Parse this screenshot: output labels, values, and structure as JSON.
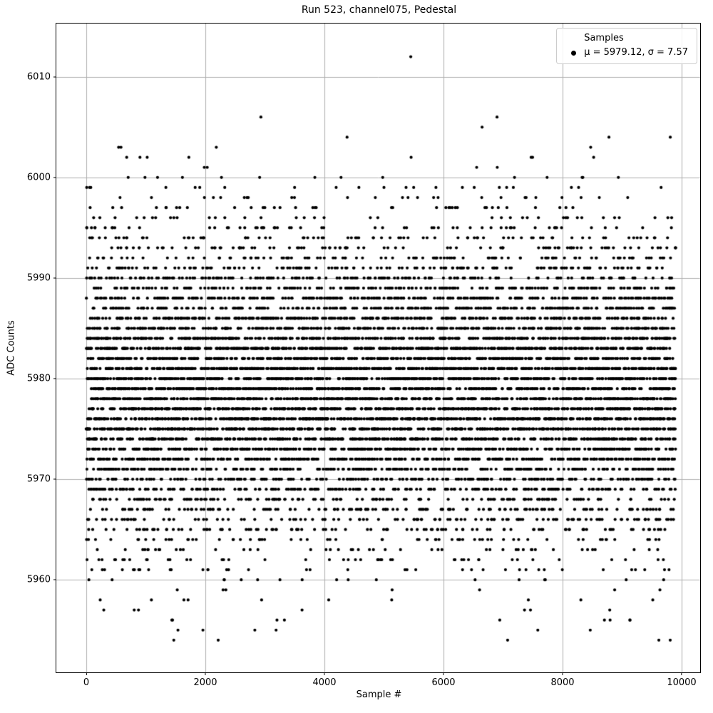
{
  "chart_data": {
    "type": "scatter",
    "title": "Run 523, channel075, Pedestal",
    "xlabel": "Sample #",
    "ylabel": "ADC Counts",
    "xlim": [
      -503,
      10311
    ],
    "ylim": [
      5950.8,
      6015.3
    ],
    "xticks": [
      0,
      2000,
      4000,
      6000,
      8000,
      10000
    ],
    "yticks": [
      5960,
      5970,
      5980,
      5990,
      6000,
      6010
    ],
    "grid": true,
    "legend": {
      "position": "upper right",
      "entry_label": "Samples",
      "stats_label": "μ = 5979.12, σ = 7.57"
    },
    "stats": {
      "mu": 5979.12,
      "sigma": 7.57
    },
    "series": [
      {
        "name": "Samples",
        "marker": {
          "shape": "circle",
          "color": "#000000",
          "radius_px": 2.1
        },
        "n_points": 9900,
        "x_range": [
          0,
          9899
        ],
        "y_distribution": {
          "type": "gaussian_rounded_to_integer",
          "mu": 5979.12,
          "sigma": 7.57
        },
        "y_observed_range": [
          5954,
          6012
        ],
        "notable_points": [
          [
            5450,
            6012
          ],
          [
            6899,
            6006
          ],
          [
            6648,
            6005
          ],
          [
            8779,
            6004
          ],
          [
            583,
            6003
          ],
          [
            2184,
            6003
          ],
          [
            902,
            6002
          ],
          [
            7496,
            6002
          ],
          [
            877,
            5957
          ],
          [
            3624,
            5957
          ],
          [
            8703,
            5956
          ],
          [
            9130,
            5956
          ],
          [
            1540,
            5955
          ],
          [
            1959,
            5955
          ],
          [
            3188,
            5955
          ],
          [
            8465,
            5955
          ],
          [
            7077,
            5954
          ],
          [
            9617,
            5954
          ],
          [
            9808,
            5954
          ]
        ]
      }
    ],
    "colors": {
      "marker": "#000000",
      "grid": "#b0b0b0",
      "spine": "#000000",
      "background": "#ffffff",
      "legend_border": "#cccccc"
    }
  }
}
